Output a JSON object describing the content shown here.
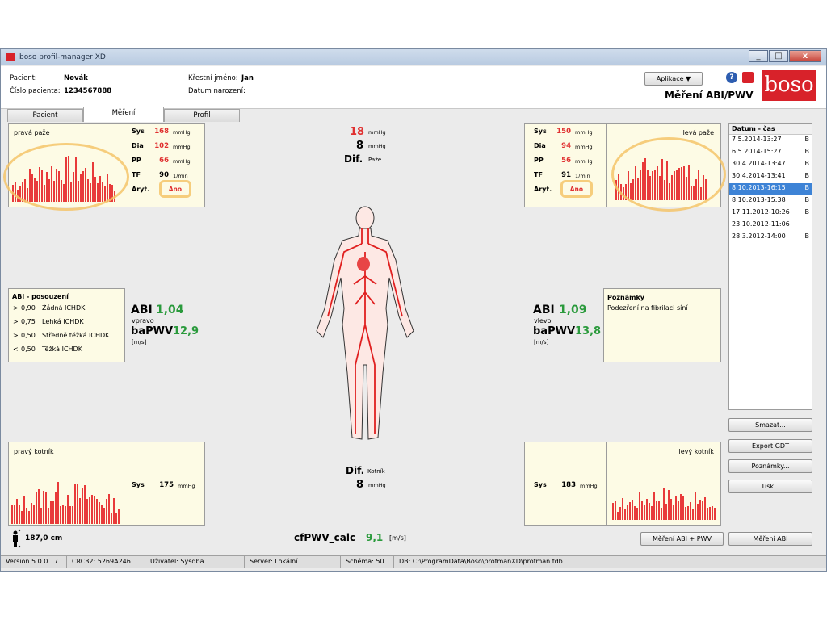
{
  "window": {
    "title": "boso profil-manager XD",
    "buttons": [
      "_",
      "□",
      "x"
    ]
  },
  "header": {
    "patient_label": "Pacient:",
    "patient_value": "Novák",
    "number_label": "Číslo pacienta:",
    "number_value": "1234567888",
    "firstname_label": "Křestní jméno:",
    "firstname_value": "Jan",
    "birthdate_label": "Datum narození:",
    "app_button": "Aplikace ▼",
    "logo_text": "boso",
    "measurement_title": "Měření ABI/PWV"
  },
  "tabs": [
    {
      "label": "Pacient"
    },
    {
      "label": "Měření"
    },
    {
      "label": "Profil"
    }
  ],
  "right_arm": {
    "title": "pravá paže",
    "rows": [
      {
        "label": "Sys",
        "value": "168",
        "unit": "mmHg"
      },
      {
        "label": "Dia",
        "value": "102",
        "unit": "mmHg"
      },
      {
        "label": "PP",
        "value": "66",
        "unit": "mmHg"
      },
      {
        "label": "TF",
        "value": "90",
        "unit": "1/min"
      },
      {
        "label": "Aryt.",
        "value": "Ano",
        "unit": ""
      }
    ]
  },
  "left_arm": {
    "title": "levá paže",
    "rows": [
      {
        "label": "Sys",
        "value": "150",
        "unit": "mmHg"
      },
      {
        "label": "Dia",
        "value": "94",
        "unit": "mmHg"
      },
      {
        "label": "PP",
        "value": "56",
        "unit": "mmHg"
      },
      {
        "label": "TF",
        "value": "91",
        "unit": "1/min"
      },
      {
        "label": "Aryt.",
        "value": "Ano",
        "unit": ""
      }
    ]
  },
  "arm_diff": {
    "value": "18",
    "unit": "mmHg",
    "value2": "8",
    "unit2": "mmHg",
    "label": "Dif.",
    "sub": "Paže"
  },
  "ankle_diff": {
    "label": "Dif.",
    "sub": "Kotník",
    "value": "8",
    "unit": "mmHg"
  },
  "abi_eval": {
    "title": "ABI - posouzení",
    "rows": [
      {
        "op": ">",
        "val": "0,90",
        "text": "Žádná ICHDK"
      },
      {
        "op": ">",
        "val": "0,75",
        "text": "Lehká ICHDK"
      },
      {
        "op": ">",
        "val": "0,50",
        "text": "Středně těžká ICHDK"
      },
      {
        "op": "<",
        "val": "0,50",
        "text": "Těžká ICHDK"
      }
    ]
  },
  "right_result": {
    "abi_label": "ABI",
    "abi_value": "1,04",
    "side": "vpravo",
    "pwv_label": "baPWV",
    "pwv_value": "12,9",
    "unit": "[m/s]"
  },
  "left_result": {
    "abi_label": "ABI",
    "abi_value": "1,09",
    "side": "vlevo",
    "pwv_label": "baPWV",
    "pwv_value": "13,8",
    "unit": "[m/s]"
  },
  "notes": {
    "title": "Poznámky",
    "text": "Podezření na fibrilaci síní"
  },
  "right_ankle": {
    "title": "pravý kotník",
    "label": "Sys",
    "value": "175",
    "unit": "mmHg"
  },
  "left_ankle": {
    "title": "levý kotník",
    "label": "Sys",
    "value": "183",
    "unit": "mmHg"
  },
  "history": {
    "header": "Datum - čas",
    "items": [
      {
        "date": "7.5.2014-13:27",
        "flag": "B"
      },
      {
        "date": "6.5.2014-15:27",
        "flag": "B"
      },
      {
        "date": "30.4.2014-13:47",
        "flag": "B"
      },
      {
        "date": "30.4.2014-13:41",
        "flag": "B"
      },
      {
        "date": "8.10.2013-16:15",
        "flag": "B"
      },
      {
        "date": "8.10.2013-15:38",
        "flag": "B"
      },
      {
        "date": "17.11.2012-10:26",
        "flag": "B"
      },
      {
        "date": "23.10.2012-11:06",
        "flag": ""
      },
      {
        "date": "28.3.2012-14:00",
        "flag": "B"
      }
    ],
    "selected": 4
  },
  "side_buttons": [
    "Smazat...",
    "Export GDT",
    "Poznámky...",
    "Tisk..."
  ],
  "height": "187,0 cm",
  "cfpwv": {
    "label": "cfPWV_calc",
    "value": "9,1",
    "unit": "[m/s]"
  },
  "bottom_buttons": [
    "Měření ABI + PWV",
    "Měření ABI"
  ],
  "status": [
    "Version 5.0.0.17",
    "CRC32: 5269A246",
    "Uživatel: Sysdba",
    "Server: Lokální",
    "Schéma: 50",
    "DB: C:\\ProgramData\\Boso\\profmanXD\\profman.fdb"
  ],
  "colors": {
    "bad": "#e03030",
    "good": "#2a9a3c",
    "panel": "#fdfbe5",
    "highlight": "#f5c46a",
    "brand": "#d8222a"
  }
}
